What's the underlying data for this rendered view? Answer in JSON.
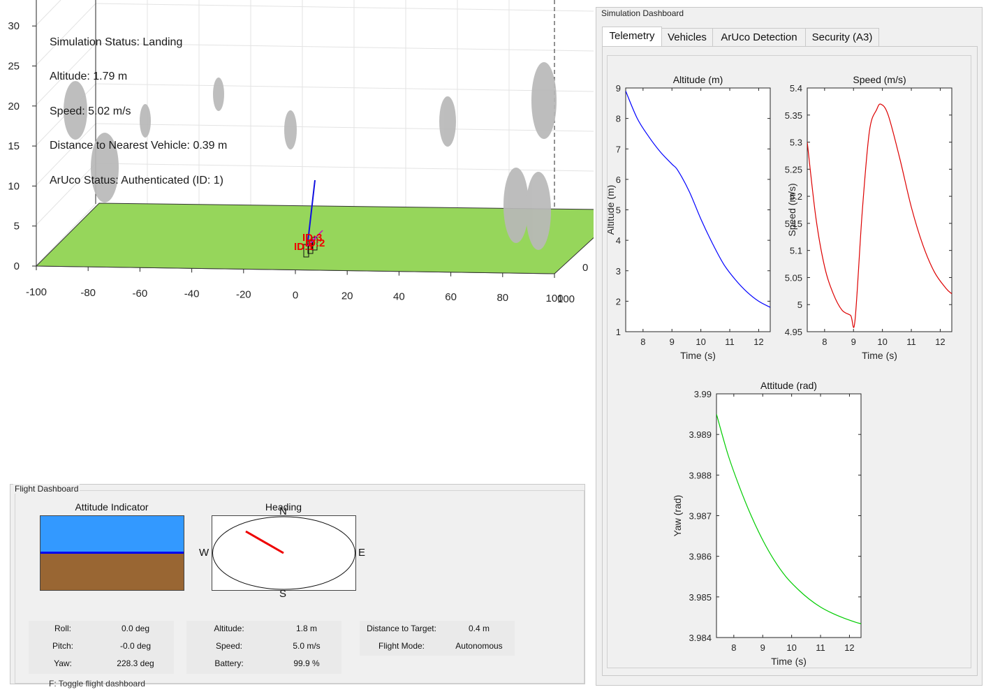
{
  "scene": {
    "status": {
      "simulation": "Simulation Status: Landing",
      "altitude": "Altitude: 1.79 m",
      "speed": "Speed: 5.02 m/s",
      "nearest": "Distance to Nearest Vehicle: 0.39 m",
      "aruco": "ArUco Status: Authenticated (ID: 1)"
    },
    "z_ticks": [
      "0",
      "5",
      "10",
      "15",
      "20",
      "25",
      "30"
    ],
    "x_ticks": [
      "-100",
      "-80",
      "-60",
      "-40",
      "-20",
      "0",
      "20",
      "40",
      "60",
      "80",
      "100"
    ],
    "y_tick_right": "0",
    "y_tick_corner": "100",
    "marker_labels": {
      "a": "ID:3",
      "b": "ID:1",
      "c": "ID:2"
    },
    "ground_color": "#96d65b",
    "obstacle_color": "#b8b8b8"
  },
  "flight_dashboard": {
    "title": "Flight Dashboard",
    "attitude_title": "Attitude Indicator",
    "heading_title": "Heading",
    "compass": {
      "n": "N",
      "s": "S",
      "e": "E",
      "w": "W"
    },
    "sky_color": "#3399ff",
    "ground_color": "#996633",
    "table1": [
      {
        "k": "Roll:",
        "v": "0.0 deg"
      },
      {
        "k": "Pitch:",
        "v": "-0.0 deg"
      },
      {
        "k": "Yaw:",
        "v": "228.3 deg"
      }
    ],
    "table2": [
      {
        "k": "Altitude:",
        "v": "1.8 m"
      },
      {
        "k": "Speed:",
        "v": "5.0 m/s"
      },
      {
        "k": "Battery:",
        "v": "99.9 %"
      }
    ],
    "table3": [
      {
        "k": "Distance to Target:",
        "v": "0.4 m"
      },
      {
        "k": "Flight Mode:",
        "v": "Autonomous"
      }
    ],
    "hint": "F: Toggle flight dashboard"
  },
  "sim_dashboard": {
    "title": "Simulation Dashboard",
    "tabs": [
      "Telemetry",
      "Vehicles",
      "ArUco Detection",
      "Security (A3)"
    ],
    "active_tab": "Telemetry"
  },
  "chart_data": [
    {
      "type": "line",
      "title": "Altitude (m)",
      "xlabel": "Time (s)",
      "ylabel": "Altitude (m)",
      "xlim": [
        7.4,
        12.4
      ],
      "ylim": [
        1,
        9
      ],
      "xticks": [
        "8",
        "9",
        "10",
        "11",
        "12"
      ],
      "yticks": [
        "1",
        "2",
        "3",
        "4",
        "5",
        "6",
        "7",
        "8",
        "9"
      ],
      "color": "#0000ff",
      "x": [
        7.4,
        7.8,
        8.2,
        8.6,
        9.0,
        9.2,
        9.6,
        10.0,
        10.4,
        10.8,
        11.2,
        11.6,
        12.0,
        12.4
      ],
      "y": [
        8.9,
        8.0,
        7.4,
        6.9,
        6.5,
        6.3,
        5.6,
        4.7,
        3.9,
        3.2,
        2.7,
        2.3,
        2.0,
        1.8
      ]
    },
    {
      "type": "line",
      "title": "Speed (m/s)",
      "xlabel": "Time (s)",
      "ylabel": "Speed (m/s)",
      "xlim": [
        7.4,
        12.4
      ],
      "ylim": [
        4.95,
        5.4
      ],
      "xticks": [
        "8",
        "9",
        "10",
        "11",
        "12"
      ],
      "yticks": [
        "4.95",
        "5",
        "5.05",
        "5.1",
        "5.15",
        "5.2",
        "5.25",
        "5.3",
        "5.35",
        "5.4"
      ],
      "color": "#dd0000",
      "x": [
        7.4,
        7.7,
        8.0,
        8.3,
        8.6,
        8.9,
        9.05,
        9.3,
        9.55,
        9.8,
        9.95,
        10.2,
        10.6,
        11.0,
        11.4,
        11.8,
        12.2,
        12.4
      ],
      "y": [
        5.3,
        5.16,
        5.07,
        5.02,
        4.99,
        4.98,
        4.97,
        5.17,
        5.32,
        5.36,
        5.37,
        5.35,
        5.27,
        5.18,
        5.11,
        5.06,
        5.03,
        5.02
      ]
    },
    {
      "type": "line",
      "title": "Attitude (rad)",
      "xlabel": "Time (s)",
      "ylabel": "Yaw (rad)",
      "xlim": [
        7.4,
        12.4
      ],
      "ylim": [
        3.984,
        3.99
      ],
      "xticks": [
        "8",
        "9",
        "10",
        "11",
        "12"
      ],
      "yticks": [
        "3.984",
        "3.985",
        "3.986",
        "3.987",
        "3.988",
        "3.989",
        "3.99"
      ],
      "color": "#00cc00",
      "x": [
        7.4,
        7.8,
        8.2,
        8.6,
        9.0,
        9.4,
        9.8,
        10.2,
        10.6,
        11.0,
        11.4,
        11.8,
        12.2,
        12.4
      ],
      "y": [
        3.9895,
        3.9885,
        3.9877,
        3.987,
        3.9864,
        3.9859,
        3.9855,
        3.9852,
        3.98495,
        3.98475,
        3.9846,
        3.98448,
        3.98438,
        3.98434
      ]
    }
  ]
}
